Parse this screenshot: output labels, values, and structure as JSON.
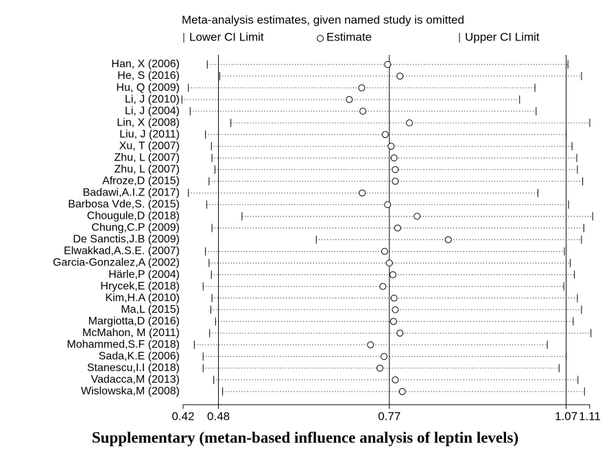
{
  "chart_data": {
    "type": "influence",
    "title": "Meta-analysis estimates, given named study is omitted",
    "caption": "Supplementary (metan-based influence analysis of leptin levels)",
    "legend": [
      "Lower CI Limit",
      "Estimate",
      "Upper CI Limit"
    ],
    "categories": [
      "Han, X (2006)",
      "He, S (2016)",
      "Hu, Q (2009)",
      "Li, J (2010)",
      "Li, J (2004)",
      "Lin, X (2008)",
      "Liu, J (2011)",
      "Xu, T (2007)",
      "Zhu, L (2007)",
      "Zhu, L (2007)",
      "Afroze,D (2015)",
      "Badawi,A.I.Z (2017)",
      "Barbosa Vde,S. (2015)",
      "Chougule,D (2018)",
      "Chung,C.P (2009)",
      "De Sanctis,J.B (2009)",
      "Elwakkad,A.S.E. (2007)",
      "Garcia-Gonzalez,A (2002)",
      "Härle,P (2004)",
      "Hrycek,E (2018)",
      "Kim,H.A (2010)",
      "Ma,L (2015)",
      "Margiotta,D (2016)",
      "McMahon, M (2011)",
      "Mohammed,S.F (2018)",
      "Sada,K.E (2006)",
      "Stanescu,I.I (2018)",
      "Vadacca,M (2013)",
      "Wislowska,M (2008)"
    ],
    "series": [
      {
        "name": "Lower CI Limit",
        "values": [
          0.461,
          0.482,
          0.429,
          0.418,
          0.432,
          0.501,
          0.458,
          0.468,
          0.469,
          0.474,
          0.464,
          0.429,
          0.46,
          0.52,
          0.469,
          0.646,
          0.458,
          0.464,
          0.468,
          0.454,
          0.469,
          0.467,
          0.475,
          0.465,
          0.439,
          0.454,
          0.454,
          0.472,
          0.487
        ]
      },
      {
        "name": "Estimate",
        "values": [
          0.767,
          0.788,
          0.723,
          0.702,
          0.725,
          0.804,
          0.763,
          0.773,
          0.778,
          0.78,
          0.78,
          0.724,
          0.767,
          0.817,
          0.784,
          0.87,
          0.762,
          0.77,
          0.776,
          0.759,
          0.778,
          0.78,
          0.777,
          0.788,
          0.738,
          0.761,
          0.754,
          0.78,
          0.792
        ]
      },
      {
        "name": "Upper CI Limit",
        "values": [
          1.073,
          1.096,
          1.017,
          0.991,
          1.019,
          1.11,
          1.07,
          1.08,
          1.088,
          1.089,
          1.098,
          1.022,
          1.074,
          1.115,
          1.1,
          1.096,
          1.067,
          1.077,
          1.084,
          1.066,
          1.089,
          1.096,
          1.082,
          1.112,
          1.038,
          1.07,
          1.058,
          1.09,
          1.101
        ]
      }
    ],
    "reference_lines": [
      0.48,
      0.77,
      1.07
    ],
    "xlim": [
      0.42,
      1.11
    ],
    "xticks": [
      0.42,
      0.48,
      0.77,
      1.07,
      1.11
    ]
  }
}
